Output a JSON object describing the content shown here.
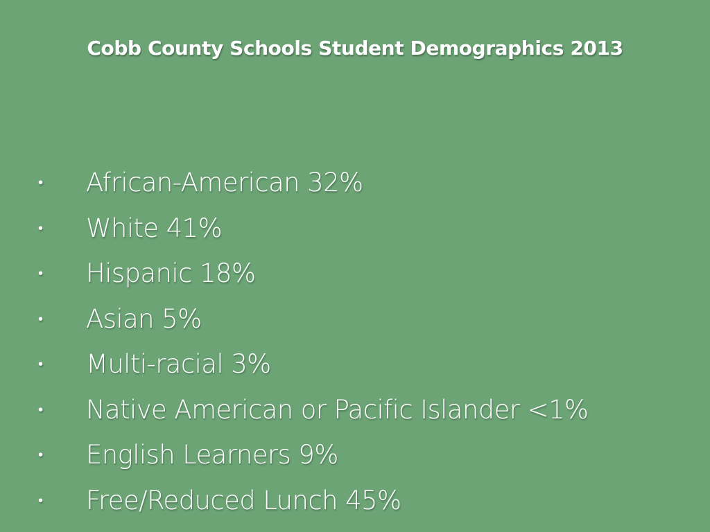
{
  "colors": {
    "background": "#6ca476",
    "text": "#ffffff"
  },
  "slide": {
    "title": "Cobb County Schools Student Demographics 2013",
    "bullet_glyph": "•",
    "items": [
      "African-American 32%",
      "White 41%",
      "Hispanic 18%",
      "Asian 5%",
      "Multi-racial 3%",
      "Native American or Pacific Islander <1%",
      "English Learners 9%",
      "Free/Reduced Lunch 45%"
    ]
  }
}
